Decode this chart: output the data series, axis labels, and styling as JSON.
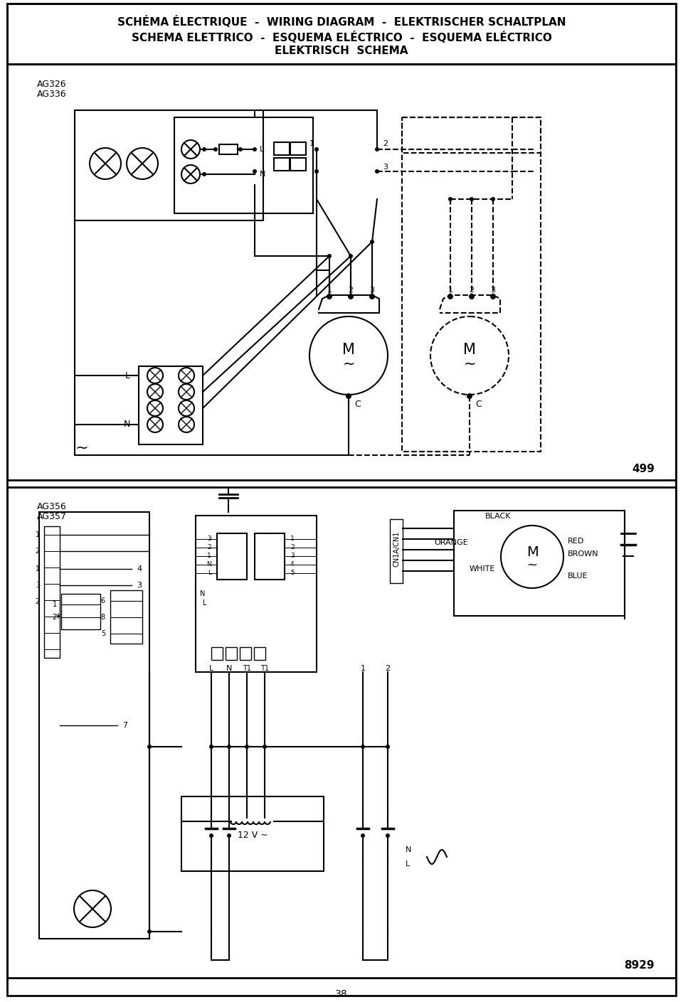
{
  "title_line1": "SCHÉMA ÉLECTRIQUE  -  WIRING DIAGRAM  -  ELEKTRISCHER SCHALTPLAN",
  "title_line2": "SCHEMA ELETTRICO  -  ESQUEMA ELÉCTRICO  -  ESQUEMA ELÉCTRICO",
  "title_line3": "ELEKTRISCH  SCHEMA",
  "page_number": "38",
  "diagram1_label1": "AG326",
  "diagram1_label2": "AG336",
  "diagram1_code": "499",
  "diagram2_label1": "AG356",
  "diagram2_label2": "AG357",
  "diagram2_code": "8929",
  "bg_color": "#ffffff",
  "line_color": "#000000"
}
